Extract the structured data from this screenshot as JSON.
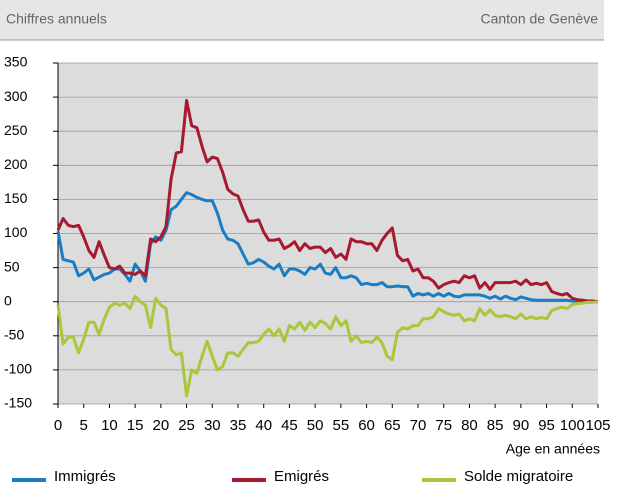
{
  "header": {
    "left": "Chiffres annuels",
    "right": "Canton de Genève"
  },
  "chart_data": {
    "type": "line",
    "xlabel": "Age en années",
    "x": [
      0,
      1,
      2,
      3,
      4,
      5,
      6,
      7,
      8,
      9,
      10,
      11,
      12,
      13,
      14,
      15,
      16,
      17,
      18,
      19,
      20,
      21,
      22,
      23,
      24,
      25,
      26,
      27,
      28,
      29,
      30,
      31,
      32,
      33,
      34,
      35,
      36,
      37,
      38,
      39,
      40,
      41,
      42,
      43,
      44,
      45,
      46,
      47,
      48,
      49,
      50,
      51,
      52,
      53,
      54,
      55,
      56,
      57,
      58,
      59,
      60,
      61,
      62,
      63,
      64,
      65,
      66,
      67,
      68,
      69,
      70,
      71,
      72,
      73,
      74,
      75,
      76,
      77,
      78,
      79,
      80,
      81,
      82,
      83,
      84,
      85,
      86,
      87,
      88,
      89,
      90,
      91,
      92,
      93,
      94,
      95,
      96,
      97,
      98,
      99,
      100,
      101,
      102,
      103,
      104,
      105
    ],
    "xlim": [
      0,
      105
    ],
    "xticks": [
      0,
      5,
      10,
      15,
      20,
      25,
      30,
      35,
      40,
      45,
      50,
      55,
      60,
      65,
      70,
      75,
      80,
      85,
      90,
      95,
      100,
      105
    ],
    "ylim": [
      -150,
      350
    ],
    "yticks": [
      -150,
      -100,
      -50,
      0,
      50,
      100,
      150,
      200,
      250,
      300,
      350
    ],
    "grid": true,
    "series": [
      {
        "name": "Immigrés",
        "color": "#1a7dc4",
        "values": [
          103,
          62,
          60,
          58,
          38,
          42,
          48,
          32,
          36,
          40,
          42,
          48,
          48,
          40,
          30,
          55,
          45,
          30,
          85,
          95,
          90,
          105,
          135,
          140,
          150,
          160,
          157,
          153,
          150,
          148,
          148,
          130,
          105,
          92,
          90,
          85,
          70,
          55,
          57,
          62,
          58,
          52,
          48,
          55,
          38,
          48,
          48,
          45,
          40,
          50,
          48,
          55,
          42,
          40,
          50,
          35,
          35,
          38,
          35,
          25,
          27,
          25,
          25,
          28,
          22,
          22,
          23,
          22,
          22,
          8,
          12,
          10,
          12,
          8,
          12,
          8,
          12,
          8,
          7,
          10,
          10,
          10,
          10,
          8,
          5,
          8,
          4,
          8,
          5,
          3,
          7,
          5,
          3,
          2,
          2,
          2,
          2,
          2,
          2,
          2,
          1,
          0,
          0,
          0,
          0,
          0
        ]
      },
      {
        "name": "Emigrés",
        "color": "#a6192e",
        "values": [
          105,
          122,
          112,
          110,
          112,
          95,
          75,
          65,
          88,
          68,
          50,
          48,
          52,
          42,
          42,
          40,
          45,
          38,
          92,
          88,
          95,
          110,
          180,
          218,
          220,
          295,
          258,
          255,
          228,
          205,
          212,
          210,
          190,
          165,
          158,
          155,
          135,
          118,
          118,
          120,
          102,
          90,
          90,
          92,
          78,
          82,
          88,
          75,
          85,
          78,
          80,
          80,
          72,
          78,
          65,
          70,
          62,
          92,
          88,
          88,
          85,
          85,
          75,
          90,
          100,
          108,
          68,
          60,
          62,
          45,
          48,
          35,
          35,
          30,
          20,
          25,
          28,
          30,
          28,
          38,
          35,
          38,
          20,
          28,
          18,
          28,
          28,
          28,
          28,
          30,
          25,
          32,
          25,
          27,
          25,
          28,
          15,
          12,
          10,
          12,
          5,
          3,
          2,
          1,
          1,
          0
        ]
      },
      {
        "name": "Solde migratoire",
        "color": "#a8c83a",
        "values": [
          -5,
          -62,
          -52,
          -52,
          -75,
          -55,
          -30,
          -30,
          -48,
          -25,
          -8,
          -2,
          -5,
          -2,
          -10,
          8,
          0,
          -5,
          -38,
          5,
          -5,
          -10,
          -70,
          -78,
          -75,
          -138,
          -100,
          -105,
          -80,
          -58,
          -80,
          -100,
          -95,
          -75,
          -75,
          -80,
          -70,
          -60,
          -60,
          -58,
          -48,
          -40,
          -50,
          -40,
          -58,
          -35,
          -40,
          -30,
          -42,
          -30,
          -38,
          -28,
          -32,
          -40,
          -22,
          -35,
          -28,
          -58,
          -50,
          -60,
          -58,
          -60,
          -52,
          -60,
          -80,
          -85,
          -45,
          -38,
          -40,
          -35,
          -35,
          -25,
          -25,
          -22,
          -10,
          -15,
          -18,
          -20,
          -18,
          -28,
          -25,
          -28,
          -10,
          -20,
          -12,
          -20,
          -22,
          -20,
          -22,
          -25,
          -18,
          -25,
          -22,
          -25,
          -23,
          -25,
          -13,
          -10,
          -8,
          -10,
          -4,
          -3,
          -2,
          -1,
          -1,
          0
        ]
      }
    ]
  }
}
